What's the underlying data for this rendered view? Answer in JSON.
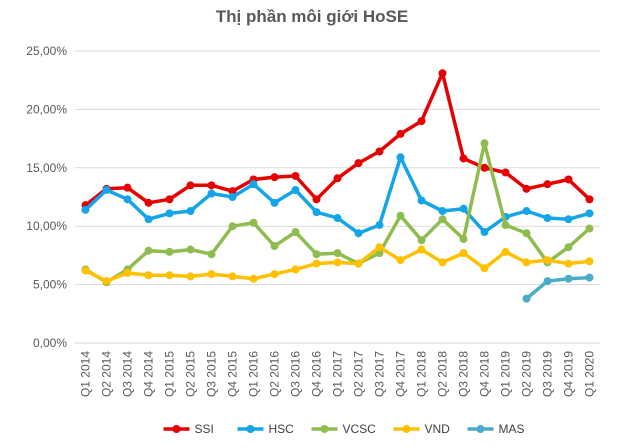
{
  "chart_data": {
    "type": "line",
    "title": "Thị phần môi giới HoSE",
    "xlabel": "",
    "ylabel": "",
    "ylim": [
      0,
      25
    ],
    "y_ticks": [
      "0,00%",
      "5,00%",
      "10,00%",
      "15,00%",
      "20,00%",
      "25,00%"
    ],
    "grid": true,
    "legend_position": "bottom",
    "categories": [
      "Q1 2014",
      "Q2 2014",
      "Q3 2014",
      "Q4 2014",
      "Q1 2015",
      "Q2 2015",
      "Q3 2015",
      "Q4 2015",
      "Q1 2016",
      "Q2 2016",
      "Q3 2016",
      "Q4 2016",
      "Q1 2017",
      "Q2 2017",
      "Q3 2017",
      "Q4 2017",
      "Q1 2018",
      "Q2 2018",
      "Q3 2018",
      "Q4 2018",
      "Q1 2019",
      "Q2 2019",
      "Q3 2019",
      "Q4 2019",
      "Q1 2020"
    ],
    "series": [
      {
        "name": "SSI",
        "color": "#e60000",
        "values": [
          11.8,
          13.2,
          13.3,
          12.0,
          12.3,
          13.5,
          13.5,
          13.0,
          14.0,
          14.2,
          14.3,
          12.3,
          14.1,
          15.4,
          16.4,
          17.9,
          19.0,
          23.1,
          15.8,
          15.0,
          14.6,
          13.2,
          13.6,
          14.0,
          12.3
        ]
      },
      {
        "name": "HSC",
        "color": "#14a4e8",
        "values": [
          11.4,
          13.1,
          12.3,
          10.6,
          11.1,
          11.3,
          12.8,
          12.5,
          13.6,
          12.0,
          13.1,
          11.2,
          10.7,
          9.4,
          10.1,
          15.9,
          12.2,
          11.3,
          11.5,
          9.5,
          10.8,
          11.3,
          10.7,
          10.6,
          11.1
        ]
      },
      {
        "name": "VCSC",
        "color": "#8fbc4f",
        "values": [
          6.3,
          5.2,
          6.3,
          7.9,
          7.8,
          8.0,
          7.6,
          10.0,
          10.3,
          8.3,
          9.5,
          7.6,
          7.7,
          6.8,
          7.7,
          10.9,
          8.8,
          10.6,
          8.9,
          17.1,
          10.1,
          9.4,
          6.9,
          8.2,
          9.8
        ]
      },
      {
        "name": "VND",
        "color": "#ffc000",
        "values": [
          6.2,
          5.3,
          6.0,
          5.8,
          5.8,
          5.7,
          5.9,
          5.7,
          5.5,
          5.9,
          6.3,
          6.8,
          6.9,
          6.8,
          8.2,
          7.1,
          8.0,
          6.9,
          7.7,
          6.4,
          7.8,
          6.9,
          7.1,
          6.8,
          7.0
        ]
      },
      {
        "name": "MAS",
        "color": "#4bacc6",
        "values": [
          null,
          null,
          null,
          null,
          null,
          null,
          null,
          null,
          null,
          null,
          null,
          null,
          null,
          null,
          null,
          null,
          null,
          null,
          null,
          null,
          null,
          3.8,
          5.3,
          5.5,
          5.6
        ]
      }
    ]
  }
}
